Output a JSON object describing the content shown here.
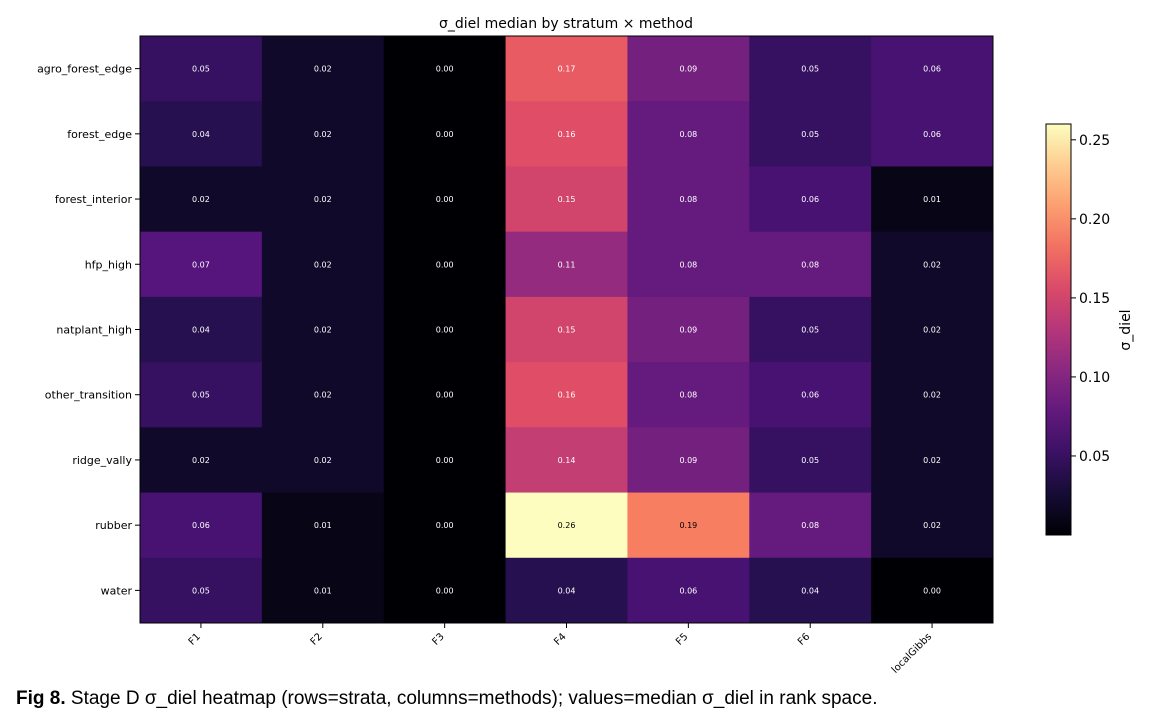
{
  "chart_data": {
    "type": "heatmap",
    "title": "σ_diel median by stratum × method",
    "rows": [
      "agro_forest_edge",
      "forest_edge",
      "forest_interior",
      "hfp_high",
      "natplant_high",
      "other_transition",
      "ridge_vally",
      "rubber",
      "water"
    ],
    "columns": [
      "F1",
      "F2",
      "F3",
      "F4",
      "F5",
      "F6",
      "localGibbs"
    ],
    "values": [
      [
        0.05,
        0.02,
        0.0,
        0.17,
        0.09,
        0.05,
        0.06
      ],
      [
        0.04,
        0.02,
        0.0,
        0.16,
        0.08,
        0.05,
        0.06
      ],
      [
        0.02,
        0.02,
        0.0,
        0.15,
        0.08,
        0.06,
        0.01
      ],
      [
        0.07,
        0.02,
        0.0,
        0.11,
        0.08,
        0.08,
        0.02
      ],
      [
        0.04,
        0.02,
        0.0,
        0.15,
        0.09,
        0.05,
        0.02
      ],
      [
        0.05,
        0.02,
        0.0,
        0.16,
        0.08,
        0.06,
        0.02
      ],
      [
        0.02,
        0.02,
        0.0,
        0.14,
        0.09,
        0.05,
        0.02
      ],
      [
        0.06,
        0.01,
        0.0,
        0.26,
        0.19,
        0.08,
        0.02
      ],
      [
        0.05,
        0.01,
        0.0,
        0.04,
        0.06,
        0.04,
        0.0
      ]
    ],
    "colorbar": {
      "label": "σ_diel",
      "range": [
        0.0,
        0.26
      ],
      "ticks": [
        0.05,
        0.1,
        0.15,
        0.2,
        0.25
      ],
      "tick_labels": [
        "0.05",
        "0.10",
        "0.15",
        "0.20",
        "0.25"
      ],
      "colormap": "magma"
    },
    "grid": false
  },
  "caption": {
    "label": "Fig 8.",
    "text": " Stage D σ_diel heatmap (rows=strata, columns=methods); values=median σ_diel in rank space."
  }
}
